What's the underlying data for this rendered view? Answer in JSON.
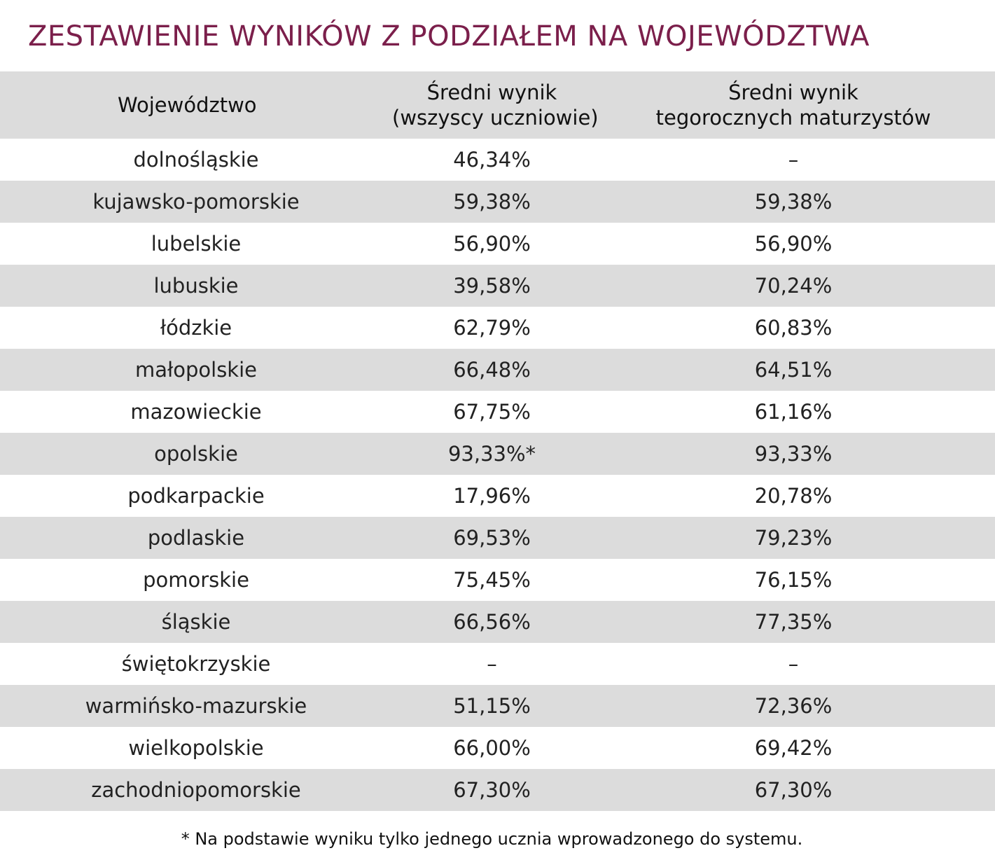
{
  "title": "ZESTAWIENIE WYNIKÓW Z PODZIAŁEM NA WOJEWÓDZTWA",
  "chart_data": {
    "type": "table",
    "columns": [
      [
        "Województwo"
      ],
      [
        "Średni wynik",
        "(wszyscy uczniowie)"
      ],
      [
        "Średni wynik",
        "tegorocznych maturzystów"
      ]
    ],
    "rows": [
      [
        "dolnośląskie",
        "46,34%",
        "–"
      ],
      [
        "kujawsko-pomorskie",
        "59,38%",
        "59,38%"
      ],
      [
        "lubelskie",
        "56,90%",
        "56,90%"
      ],
      [
        "lubuskie",
        "39,58%",
        "70,24%"
      ],
      [
        "łódzkie",
        "62,79%",
        "60,83%"
      ],
      [
        "małopolskie",
        "66,48%",
        "64,51%"
      ],
      [
        "mazowieckie",
        "67,75%",
        "61,16%"
      ],
      [
        "opolskie",
        "93,33%*",
        "93,33%"
      ],
      [
        "podkarpackie",
        "17,96%",
        "20,78%"
      ],
      [
        "podlaskie",
        "69,53%",
        "79,23%"
      ],
      [
        "pomorskie",
        "75,45%",
        "76,15%"
      ],
      [
        "śląskie",
        "66,56%",
        "77,35%"
      ],
      [
        "świętokrzyskie",
        "–",
        "–"
      ],
      [
        "warmińsko-mazurskie",
        "51,15%",
        "72,36%"
      ],
      [
        "wielkopolskie",
        "66,00%",
        "69,42%"
      ],
      [
        "zachodniopomorskie",
        "67,30%",
        "67,30%"
      ]
    ]
  },
  "footnote": "* Na podstawie wyniku tylko jednego ucznia wprowadzonego do systemu.",
  "colors": {
    "title": "#7b1f4b",
    "shaded_row": "#dcdcdc",
    "plain_row": "#ffffff"
  }
}
